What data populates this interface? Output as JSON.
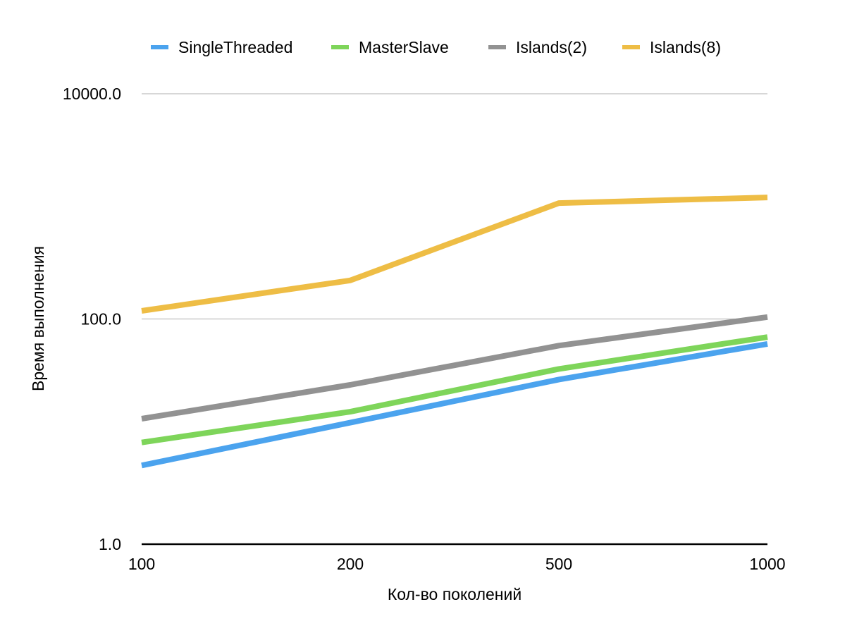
{
  "chart_data": {
    "type": "line",
    "title": "",
    "xlabel": "Кол-во поколений",
    "ylabel": "Время выполнения",
    "y_scale": "log",
    "ylim": [
      1,
      10000
    ],
    "x_scale": "categorical",
    "categories": [
      "100",
      "200",
      "500",
      "1000"
    ],
    "y_ticks": [
      {
        "value": 1,
        "label": "1.0"
      },
      {
        "value": 100,
        "label": "100.0"
      },
      {
        "value": 10000,
        "label": "10000.0"
      }
    ],
    "grid": true,
    "legend_position": "top",
    "series": [
      {
        "name": "SingleThreaded",
        "color": "#4ba3ee",
        "values": [
          5,
          12,
          29,
          60
        ]
      },
      {
        "name": "MasterSlave",
        "color": "#7ed55a",
        "values": [
          8,
          15,
          36,
          69
        ]
      },
      {
        "name": "Islands(2)",
        "color": "#929292",
        "values": [
          13,
          26,
          58,
          104
        ]
      },
      {
        "name": "Islands(8)",
        "color": "#eebd45",
        "values": [
          118,
          220,
          1070,
          1200
        ]
      }
    ]
  }
}
